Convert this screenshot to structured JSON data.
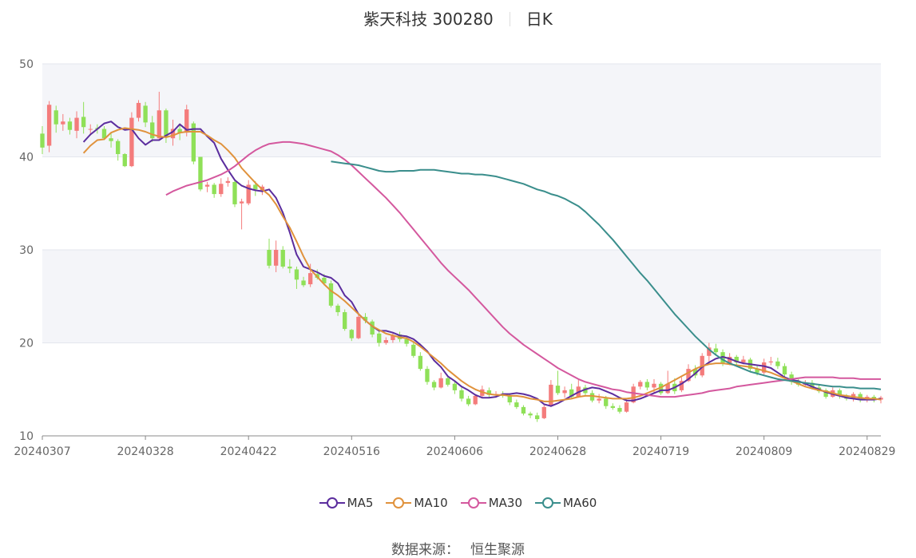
{
  "header": {
    "stock": "紫天科技 300280",
    "period": "日K"
  },
  "legend": [
    {
      "name": "MA5",
      "color": "#5b2d9e"
    },
    {
      "name": "MA10",
      "color": "#e0923c"
    },
    {
      "name": "MA30",
      "color": "#d4589e"
    },
    {
      "name": "MA60",
      "color": "#3a8e8c"
    }
  ],
  "source": {
    "label": "数据来源：",
    "value": "恒生聚源"
  },
  "colors": {
    "up": "#f47c7c",
    "down": "#8fe058",
    "band": "#f4f5f9",
    "grid": "#e3e6ee"
  },
  "chart_data": {
    "type": "candlestick",
    "ylim": [
      10,
      50
    ],
    "yticks": [
      10,
      20,
      30,
      40,
      50
    ],
    "xticks": [
      {
        "label": "20240307",
        "index": 0
      },
      {
        "label": "20240328",
        "index": 15
      },
      {
        "label": "20240422",
        "index": 30
      },
      {
        "label": "20240516",
        "index": 45
      },
      {
        "label": "20240606",
        "index": 60
      },
      {
        "label": "20240628",
        "index": 75
      },
      {
        "label": "20240719",
        "index": 90
      },
      {
        "label": "20240809",
        "index": 105
      },
      {
        "label": "20240829",
        "index": 120
      }
    ],
    "candles": [
      [
        42.5,
        41.0,
        43.3,
        40.3
      ],
      [
        41.2,
        45.6,
        46.0,
        40.5
      ],
      [
        45.0,
        43.5,
        45.5,
        42.6
      ],
      [
        43.5,
        43.8,
        44.6,
        42.8
      ],
      [
        43.8,
        42.9,
        44.2,
        42.4
      ],
      [
        42.8,
        44.2,
        44.9,
        42.0
      ],
      [
        44.3,
        43.2,
        45.9,
        42.5
      ],
      [
        43.0,
        43.0,
        43.5,
        42.3
      ],
      [
        43.1,
        43.0,
        43.5,
        42.5
      ],
      [
        43.0,
        42.0,
        43.3,
        41.8
      ],
      [
        42.0,
        41.7,
        42.6,
        41.0
      ],
      [
        41.7,
        40.3,
        41.9,
        39.6
      ],
      [
        40.3,
        39.0,
        40.4,
        38.9
      ],
      [
        39.0,
        44.2,
        44.8,
        38.9
      ],
      [
        44.2,
        45.8,
        46.1,
        43.8
      ],
      [
        45.5,
        43.7,
        45.9,
        43.2
      ],
      [
        43.7,
        42.0,
        44.4,
        41.6
      ],
      [
        42.0,
        45.0,
        47.0,
        41.8
      ],
      [
        45.0,
        42.1,
        45.2,
        41.5
      ],
      [
        42.0,
        43.0,
        44.0,
        41.2
      ],
      [
        43.0,
        42.6,
        43.6,
        41.8
      ],
      [
        42.6,
        45.1,
        45.6,
        42.2
      ],
      [
        43.6,
        39.5,
        43.8,
        39.2
      ],
      [
        40.0,
        36.5,
        40.0,
        36.3
      ],
      [
        36.8,
        37.0,
        37.3,
        36.2
      ],
      [
        37.0,
        36.0,
        37.2,
        35.6
      ],
      [
        36.0,
        37.1,
        37.7,
        35.7
      ],
      [
        37.2,
        37.4,
        37.8,
        36.8
      ],
      [
        37.3,
        34.9,
        37.5,
        34.6
      ],
      [
        35.0,
        35.2,
        35.5,
        32.2
      ],
      [
        35.0,
        37.0,
        37.5,
        34.8
      ],
      [
        37.0,
        36.5,
        37.4,
        35.8
      ],
      [
        36.4,
        36.8,
        37.0,
        35.9
      ],
      [
        30.0,
        28.3,
        31.2,
        28.0
      ],
      [
        28.3,
        30.0,
        31.0,
        27.6
      ],
      [
        30.0,
        28.2,
        30.4,
        28.0
      ],
      [
        28.2,
        28.0,
        29.0,
        27.5
      ],
      [
        27.9,
        26.8,
        28.2,
        25.8
      ],
      [
        26.7,
        26.2,
        27.1,
        26.0
      ],
      [
        26.3,
        27.5,
        28.5,
        26.0
      ],
      [
        27.4,
        27.0,
        27.9,
        26.8
      ],
      [
        27.0,
        26.4,
        27.4,
        26.2
      ],
      [
        26.4,
        24.0,
        26.7,
        23.8
      ],
      [
        24.0,
        23.3,
        24.2,
        22.9
      ],
      [
        23.3,
        21.5,
        23.6,
        21.3
      ],
      [
        21.4,
        20.5,
        21.5,
        20.2
      ],
      [
        20.5,
        22.8,
        23.0,
        20.4
      ],
      [
        22.8,
        22.4,
        23.2,
        22.1
      ],
      [
        22.3,
        20.9,
        22.5,
        20.6
      ],
      [
        21.0,
        20.0,
        21.2,
        19.6
      ],
      [
        20.0,
        20.3,
        20.6,
        19.8
      ],
      [
        20.3,
        20.8,
        21.1,
        20.0
      ],
      [
        20.9,
        20.4,
        21.2,
        20.1
      ],
      [
        20.4,
        19.9,
        20.7,
        19.6
      ],
      [
        19.8,
        18.6,
        20.1,
        18.4
      ],
      [
        18.6,
        17.2,
        19.0,
        17.0
      ],
      [
        17.2,
        15.8,
        17.5,
        15.5
      ],
      [
        15.8,
        15.2,
        16.0,
        14.9
      ],
      [
        15.2,
        16.2,
        16.8,
        15.1
      ],
      [
        16.2,
        15.5,
        16.4,
        15.3
      ],
      [
        15.6,
        14.9,
        15.9,
        14.5
      ],
      [
        14.9,
        14.0,
        15.2,
        13.7
      ],
      [
        14.0,
        13.4,
        14.3,
        13.2
      ],
      [
        13.4,
        14.3,
        14.5,
        13.3
      ],
      [
        14.3,
        15.0,
        15.4,
        14.2
      ],
      [
        14.9,
        14.4,
        15.2,
        14.1
      ],
      [
        14.4,
        14.5,
        14.8,
        14.1
      ],
      [
        14.5,
        14.3,
        14.8,
        14.1
      ],
      [
        14.3,
        13.6,
        14.5,
        13.3
      ],
      [
        13.6,
        13.1,
        13.9,
        12.9
      ],
      [
        13.1,
        12.4,
        13.3,
        12.2
      ],
      [
        12.4,
        12.2,
        12.6,
        11.9
      ],
      [
        12.2,
        11.8,
        12.5,
        11.5
      ],
      [
        11.9,
        13.1,
        13.3,
        11.8
      ],
      [
        13.2,
        15.5,
        16.0,
        13.1
      ],
      [
        15.4,
        14.6,
        17.0,
        14.4
      ],
      [
        14.6,
        14.9,
        15.3,
        14.1
      ],
      [
        15.0,
        14.2,
        15.6,
        14.0
      ],
      [
        14.2,
        15.3,
        16.0,
        14.1
      ],
      [
        15.2,
        14.6,
        15.5,
        14.3
      ],
      [
        14.6,
        13.8,
        14.9,
        13.6
      ],
      [
        13.8,
        14.0,
        14.5,
        13.5
      ],
      [
        14.0,
        13.2,
        14.3,
        12.9
      ],
      [
        13.2,
        13.0,
        13.5,
        12.8
      ],
      [
        13.0,
        12.6,
        13.3,
        12.4
      ],
      [
        12.6,
        13.6,
        13.9,
        12.5
      ],
      [
        13.6,
        15.3,
        15.6,
        13.5
      ],
      [
        15.3,
        15.8,
        16.0,
        15.0
      ],
      [
        15.8,
        15.2,
        16.1,
        14.9
      ],
      [
        15.2,
        15.6,
        16.1,
        14.6
      ],
      [
        15.6,
        14.6,
        15.8,
        14.4
      ],
      [
        14.6,
        15.6,
        17.0,
        14.5
      ],
      [
        15.6,
        14.8,
        16.2,
        14.5
      ],
      [
        14.9,
        15.9,
        16.3,
        14.7
      ],
      [
        15.9,
        17.2,
        17.7,
        15.8
      ],
      [
        17.2,
        16.5,
        17.6,
        16.2
      ],
      [
        16.5,
        18.6,
        18.9,
        16.3
      ],
      [
        18.6,
        19.5,
        20.0,
        18.0
      ],
      [
        19.4,
        19.0,
        19.9,
        18.7
      ],
      [
        19.0,
        17.8,
        19.3,
        17.5
      ],
      [
        17.8,
        18.5,
        18.9,
        17.6
      ],
      [
        18.5,
        17.9,
        18.7,
        17.6
      ],
      [
        17.9,
        18.2,
        18.6,
        17.7
      ],
      [
        18.2,
        17.2,
        18.4,
        16.9
      ],
      [
        17.2,
        16.8,
        17.5,
        16.5
      ],
      [
        16.8,
        17.9,
        18.3,
        16.6
      ],
      [
        17.9,
        18.0,
        18.5,
        17.6
      ],
      [
        18.0,
        17.5,
        18.4,
        17.2
      ],
      [
        17.5,
        16.6,
        17.8,
        16.3
      ],
      [
        16.6,
        15.8,
        16.9,
        15.5
      ],
      [
        15.8,
        15.5,
        16.1,
        15.3
      ],
      [
        15.5,
        15.7,
        16.0,
        15.3
      ],
      [
        15.7,
        15.2,
        16.0,
        15.0
      ],
      [
        15.2,
        14.8,
        15.5,
        14.6
      ],
      [
        14.9,
        14.2,
        15.1,
        14.0
      ],
      [
        14.2,
        14.9,
        15.2,
        14.1
      ],
      [
        14.9,
        14.3,
        15.1,
        14.0
      ],
      [
        14.3,
        14.0,
        14.5,
        13.8
      ],
      [
        14.0,
        14.5,
        14.7,
        13.7
      ],
      [
        14.5,
        13.9,
        14.7,
        13.6
      ],
      [
        13.9,
        14.2,
        14.4,
        13.6
      ],
      [
        14.2,
        13.9,
        14.4,
        13.6
      ],
      [
        13.9,
        14.1,
        14.3,
        13.5
      ]
    ],
    "series": [
      {
        "name": "MA5",
        "values": [
          41.6,
          42.4,
          43.0,
          43.6,
          43.8,
          43.2,
          42.9,
          43.0,
          42.0,
          41.3,
          41.8,
          41.8,
          42.3,
          42.7,
          43.5,
          42.9,
          43.0,
          43.0,
          42.2,
          41.5,
          39.8,
          38.6,
          37.5,
          36.9,
          36.6,
          36.4,
          36.3,
          36.5,
          35.6,
          34.0,
          31.9,
          29.5,
          28.2,
          27.9,
          27.6,
          27.2,
          27.0,
          26.4,
          25.1,
          24.4,
          23.1,
          22.4,
          21.8,
          21.3,
          21.3,
          21.1,
          20.8,
          20.7,
          20.4,
          19.8,
          19.1,
          18.1,
          17.4,
          16.4,
          15.9,
          15.3,
          14.9,
          14.4,
          14.1,
          14.1,
          14.2,
          14.5,
          14.5,
          14.6,
          14.5,
          14.3,
          14.0,
          13.4,
          13.2,
          13.5,
          13.9,
          14.3,
          14.7,
          15.0,
          15.2,
          15.1,
          14.8,
          14.5,
          14.1,
          13.8,
          13.8,
          14.0,
          14.3,
          14.6,
          14.9,
          14.9,
          15.2,
          15.6,
          16.1,
          16.7,
          17.4,
          17.9,
          18.3,
          18.5,
          18.3,
          18.0,
          17.8,
          17.7,
          17.6,
          17.5,
          17.3,
          16.8,
          16.3,
          16.0,
          15.9,
          15.6,
          15.3,
          15.0,
          14.7,
          14.5,
          14.3,
          14.1,
          14.0,
          13.9,
          13.9,
          13.9,
          14.0
        ]
      },
      {
        "name": "MA10",
        "values": [
          40.4,
          41.2,
          41.8,
          41.9,
          42.6,
          42.9,
          43.1,
          43.0,
          42.9,
          42.7,
          42.4,
          42.2,
          42.1,
          42.3,
          42.6,
          42.7,
          42.7,
          42.7,
          42.3,
          41.8,
          41.4,
          40.7,
          39.9,
          38.8,
          38.0,
          37.2,
          36.5,
          35.9,
          34.9,
          33.6,
          32.4,
          30.9,
          29.3,
          27.9,
          27.1,
          26.3,
          25.6,
          25.1,
          24.5,
          23.8,
          23.1,
          22.4,
          21.8,
          21.4,
          21.0,
          20.8,
          20.6,
          20.5,
          20.1,
          19.6,
          19.0,
          18.4,
          17.8,
          17.1,
          16.5,
          15.9,
          15.4,
          15.0,
          14.7,
          14.5,
          14.4,
          14.4,
          14.3,
          14.3,
          14.2,
          14.0,
          13.9,
          13.7,
          13.7,
          13.8,
          13.9,
          14.0,
          14.2,
          14.3,
          14.3,
          14.2,
          14.1,
          14.0,
          14.0,
          14.0,
          14.1,
          14.3,
          14.6,
          14.9,
          15.2,
          15.6,
          16.0,
          16.4,
          16.8,
          17.2,
          17.5,
          17.7,
          17.8,
          17.8,
          17.7,
          17.6,
          17.5,
          17.4,
          17.2,
          17.0,
          16.8,
          16.5,
          16.2,
          15.9,
          15.6,
          15.3,
          15.1,
          14.9,
          14.8,
          14.6,
          14.4,
          14.3,
          14.2,
          14.1,
          14.0,
          14.0,
          13.9
        ]
      },
      {
        "name": "MA30",
        "values": [
          35.9,
          36.3,
          36.6,
          36.9,
          37.1,
          37.3,
          37.5,
          37.8,
          38.1,
          38.5,
          39.0,
          39.6,
          40.2,
          40.7,
          41.1,
          41.4,
          41.5,
          41.6,
          41.6,
          41.5,
          41.4,
          41.2,
          41.0,
          40.8,
          40.6,
          40.2,
          39.7,
          39.1,
          38.4,
          37.7,
          37.0,
          36.3,
          35.6,
          34.8,
          34.0,
          33.1,
          32.2,
          31.3,
          30.4,
          29.5,
          28.6,
          27.8,
          27.1,
          26.4,
          25.7,
          24.9,
          24.1,
          23.3,
          22.5,
          21.7,
          21.0,
          20.4,
          19.8,
          19.3,
          18.8,
          18.3,
          17.8,
          17.3,
          16.9,
          16.5,
          16.1,
          15.8,
          15.6,
          15.4,
          15.2,
          15.0,
          14.9,
          14.7,
          14.6,
          14.5,
          14.4,
          14.3,
          14.2,
          14.2,
          14.2,
          14.3,
          14.4,
          14.5,
          14.6,
          14.8,
          14.9,
          15.0,
          15.1,
          15.3,
          15.4,
          15.5,
          15.6,
          15.7,
          15.8,
          15.9,
          16.0,
          16.1,
          16.2,
          16.3,
          16.3,
          16.3,
          16.3,
          16.3,
          16.2,
          16.2,
          16.2,
          16.1,
          16.1,
          16.1,
          16.1
        ]
      },
      {
        "name": "MA60",
        "values": [
          39.5,
          39.4,
          39.3,
          39.2,
          39.1,
          38.9,
          38.7,
          38.5,
          38.4,
          38.4,
          38.5,
          38.5,
          38.5,
          38.6,
          38.6,
          38.6,
          38.5,
          38.4,
          38.3,
          38.2,
          38.2,
          38.1,
          38.1,
          38.0,
          37.9,
          37.7,
          37.5,
          37.3,
          37.1,
          36.8,
          36.5,
          36.3,
          36.0,
          35.8,
          35.5,
          35.1,
          34.7,
          34.1,
          33.4,
          32.7,
          31.9,
          31.1,
          30.2,
          29.3,
          28.4,
          27.5,
          26.7,
          25.8,
          24.9,
          24.0,
          23.1,
          22.3,
          21.5,
          20.7,
          20.0,
          19.3,
          18.7,
          18.2,
          17.8,
          17.5,
          17.2,
          16.9,
          16.7,
          16.5,
          16.3,
          16.1,
          16.0,
          15.9,
          15.8,
          15.7,
          15.6,
          15.5,
          15.4,
          15.3,
          15.3,
          15.2,
          15.2,
          15.1,
          15.1,
          15.1,
          15.0
        ]
      }
    ]
  }
}
